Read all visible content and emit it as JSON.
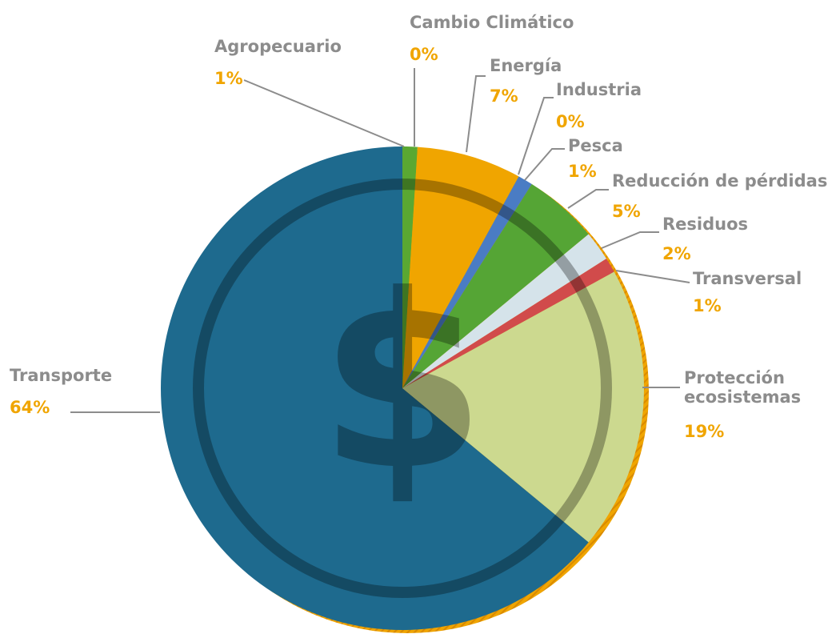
{
  "chart_data": {
    "type": "pie",
    "center_symbol": "$",
    "categories": [
      "Agropecuario",
      "Cambio Climático",
      "Energía",
      "Industria",
      "Pesca",
      "Reducción de pérdidas",
      "Residuos",
      "Transversal",
      "Protección ecosistemas",
      "Transporte"
    ],
    "values": [
      1,
      0,
      7,
      0,
      1,
      5,
      2,
      1,
      19,
      64
    ],
    "value_labels": [
      "1%",
      "0%",
      "7%",
      "0%",
      "1%",
      "5%",
      "2%",
      "1%",
      "19%",
      "64%"
    ],
    "colors": [
      "#5aa832",
      "#9bc53d",
      "#f0a500",
      "#3f6fb5",
      "#4a7cc4",
      "#55a535",
      "#d5e3ea",
      "#d14b4b",
      "#ccd98f",
      "#1e6a8e"
    ]
  }
}
